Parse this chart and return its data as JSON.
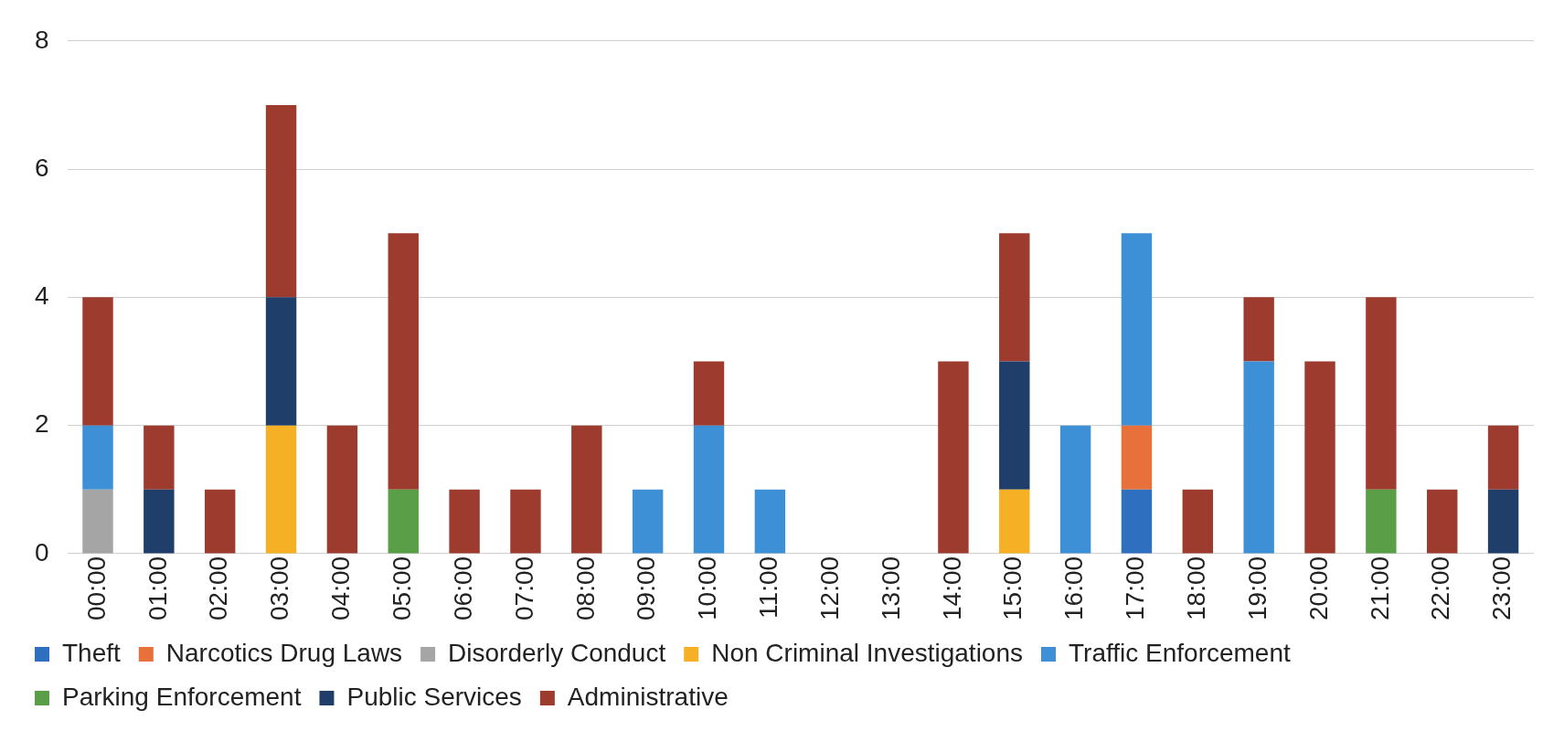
{
  "chart_data": {
    "type": "bar",
    "stacked": true,
    "categories": [
      "00:00",
      "01:00",
      "02:00",
      "03:00",
      "04:00",
      "05:00",
      "06:00",
      "07:00",
      "08:00",
      "09:00",
      "10:00",
      "11:00",
      "12:00",
      "13:00",
      "14:00",
      "15:00",
      "16:00",
      "17:00",
      "18:00",
      "19:00",
      "20:00",
      "21:00",
      "22:00",
      "23:00"
    ],
    "series": [
      {
        "name": "Theft",
        "color": "#2e6fc0",
        "values": [
          0,
          0,
          0,
          0,
          0,
          0,
          0,
          0,
          0,
          0,
          0,
          0,
          0,
          0,
          0,
          0,
          0,
          1,
          0,
          0,
          0,
          0,
          0,
          0
        ]
      },
      {
        "name": "Narcotics Drug Laws",
        "color": "#e8703a",
        "values": [
          0,
          0,
          0,
          0,
          0,
          0,
          0,
          0,
          0,
          0,
          0,
          0,
          0,
          0,
          0,
          0,
          0,
          1,
          0,
          0,
          0,
          0,
          0,
          0
        ]
      },
      {
        "name": "Disorderly Conduct",
        "color": "#a5a5a5",
        "values": [
          1,
          0,
          0,
          0,
          0,
          0,
          0,
          0,
          0,
          0,
          0,
          0,
          0,
          0,
          0,
          0,
          0,
          0,
          0,
          0,
          0,
          0,
          0,
          0
        ]
      },
      {
        "name": "Non Criminal Investigations",
        "color": "#f5b026",
        "values": [
          0,
          0,
          0,
          2,
          0,
          0,
          0,
          0,
          0,
          0,
          0,
          0,
          0,
          0,
          0,
          1,
          0,
          0,
          0,
          0,
          0,
          0,
          0,
          0
        ]
      },
      {
        "name": "Traffic Enforcement",
        "color": "#3d8fd6",
        "values": [
          1,
          0,
          0,
          0,
          0,
          0,
          0,
          0,
          0,
          1,
          2,
          1,
          0,
          0,
          0,
          0,
          2,
          3,
          0,
          3,
          0,
          0,
          0,
          0
        ]
      },
      {
        "name": "Parking Enforcement",
        "color": "#5a9e48",
        "values": [
          0,
          0,
          0,
          0,
          0,
          1,
          0,
          0,
          0,
          0,
          0,
          0,
          0,
          0,
          0,
          0,
          0,
          0,
          0,
          0,
          0,
          1,
          0,
          0
        ]
      },
      {
        "name": "Public Services",
        "color": "#1f3f6a",
        "values": [
          0,
          1,
          0,
          2,
          0,
          0,
          0,
          0,
          0,
          0,
          0,
          0,
          0,
          0,
          0,
          2,
          0,
          0,
          0,
          0,
          0,
          0,
          0,
          1
        ]
      },
      {
        "name": "Administrative",
        "color": "#9e3b2f",
        "values": [
          2,
          1,
          1,
          3,
          2,
          4,
          1,
          1,
          2,
          0,
          1,
          0,
          0,
          0,
          3,
          2,
          0,
          0,
          1,
          1,
          3,
          3,
          1,
          1
        ]
      }
    ],
    "ylim": [
      0,
      8
    ],
    "yticks": [
      0,
      2,
      4,
      6,
      8
    ],
    "grid": "y",
    "legend": "bottom"
  }
}
